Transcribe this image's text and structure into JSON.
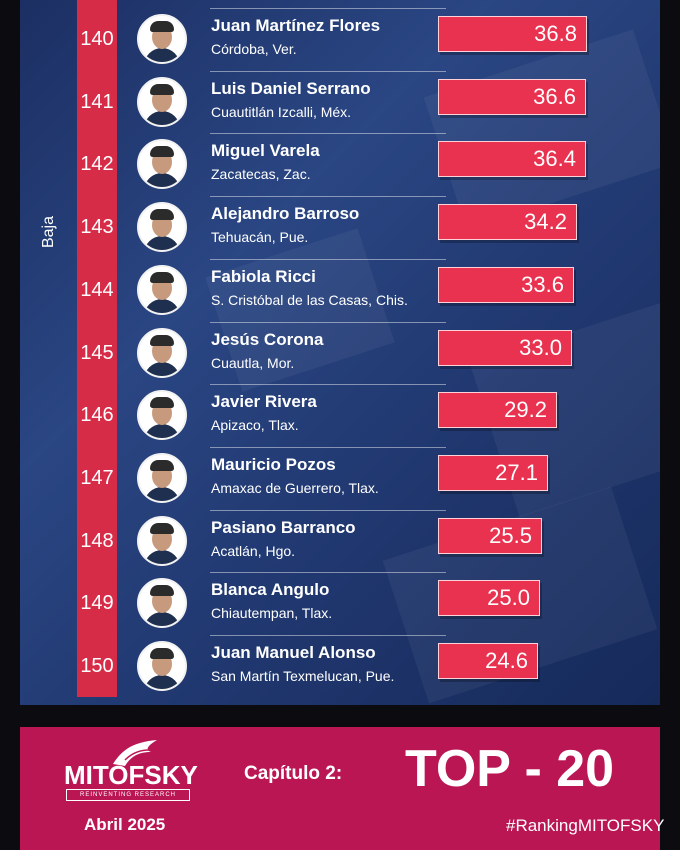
{
  "sidebar_label": "Baja",
  "chart_data": {
    "type": "bar",
    "orientation": "horizontal",
    "categories": [
      "140",
      "141",
      "142",
      "143",
      "144",
      "145",
      "146",
      "147",
      "148",
      "149",
      "150"
    ],
    "series": [
      {
        "values": [
          36.8,
          36.6,
          36.4,
          34.2,
          33.6,
          33.0,
          29.2,
          27.1,
          25.5,
          25.0,
          24.6
        ]
      }
    ],
    "bar_color": "#e8324f",
    "rows": [
      {
        "rank": "140",
        "name": "Juan Martínez Flores",
        "place": "Córdoba, Ver.",
        "value_label": "36.8"
      },
      {
        "rank": "141",
        "name": "Luis Daniel Serrano",
        "place": "Cuautitlán Izcalli, Méx.",
        "value_label": "36.6"
      },
      {
        "rank": "142",
        "name": "Miguel Varela",
        "place": "Zacatecas, Zac.",
        "value_label": "36.4"
      },
      {
        "rank": "143",
        "name": "Alejandro Barroso",
        "place": "Tehuacán, Pue.",
        "value_label": "34.2"
      },
      {
        "rank": "144",
        "name": "Fabiola Ricci",
        "place": "S. Cristóbal de las Casas, Chis.",
        "value_label": "33.6"
      },
      {
        "rank": "145",
        "name": "Jesús Corona",
        "place": "Cuautla, Mor.",
        "value_label": "33.0"
      },
      {
        "rank": "146",
        "name": "Javier Rivera",
        "place": "Apizaco, Tlax.",
        "value_label": "29.2"
      },
      {
        "rank": "147",
        "name": "Mauricio Pozos",
        "place": "Amaxac de Guerrero, Tlax.",
        "value_label": "27.1"
      },
      {
        "rank": "148",
        "name": "Pasiano Barranco",
        "place": "Acatlán, Hgo.",
        "value_label": "25.5"
      },
      {
        "rank": "149",
        "name": "Blanca Angulo",
        "place": "Chiautempan, Tlax.",
        "value_label": "25.0"
      },
      {
        "rank": "150",
        "name": "Juan Manuel Alonso",
        "place": "San Martín Texmelucan, Pue.",
        "value_label": "24.6"
      }
    ]
  },
  "footer": {
    "logo": "MITOFSKY",
    "tagline": "REINVENTING RESEARCH",
    "date": "Abril 2025",
    "chapter": "Capítulo 2:",
    "top": "TOP - 20",
    "hashtag": "#RankingMITOFSKY",
    "background": "#bb1654"
  }
}
